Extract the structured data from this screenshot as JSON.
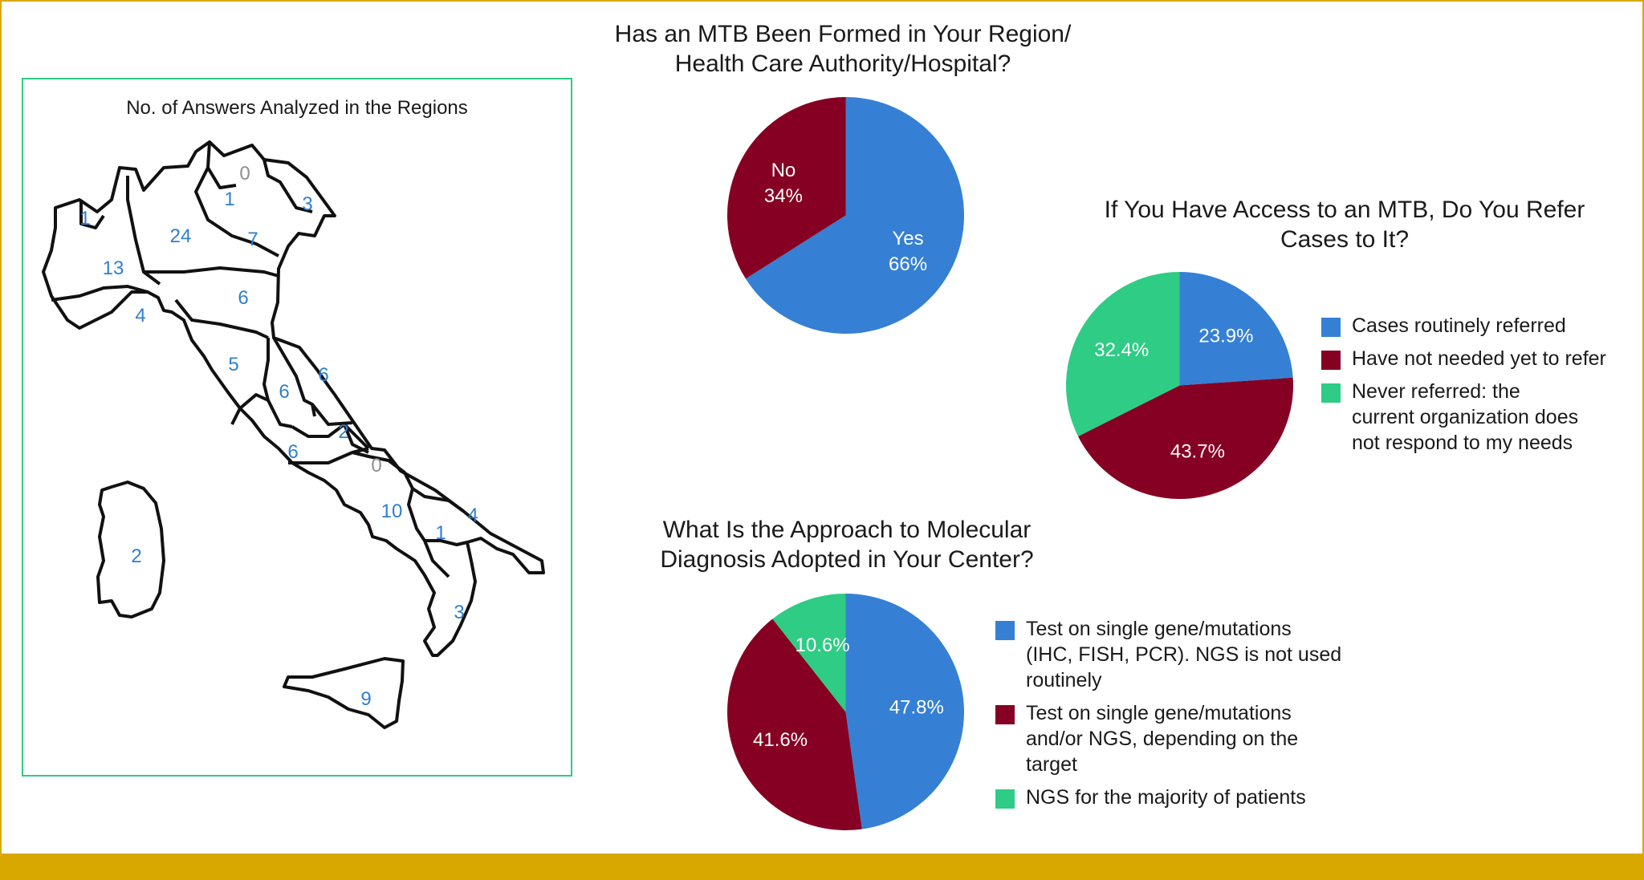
{
  "map": {
    "title": "No. of Answers Analyzed in the Regions",
    "regions": [
      {
        "name": "Valle d'Aosta",
        "value": "1"
      },
      {
        "name": "Piedmont",
        "value": "13"
      },
      {
        "name": "Liguria",
        "value": "4"
      },
      {
        "name": "Lombardy",
        "value": "24"
      },
      {
        "name": "Trentino-Alto Adige (upper)",
        "value": "0"
      },
      {
        "name": "Trentino-Alto Adige (lower)",
        "value": "1"
      },
      {
        "name": "Veneto",
        "value": "7"
      },
      {
        "name": "Friuli Venezia Giulia",
        "value": "3"
      },
      {
        "name": "Emilia-Romagna",
        "value": "6"
      },
      {
        "name": "Tuscany",
        "value": "5"
      },
      {
        "name": "Umbria",
        "value": "6"
      },
      {
        "name": "Marche",
        "value": "6"
      },
      {
        "name": "Lazio",
        "value": "6"
      },
      {
        "name": "Abruzzo",
        "value": "2"
      },
      {
        "name": "Molise",
        "value": "0"
      },
      {
        "name": "Campania",
        "value": "10"
      },
      {
        "name": "Apulia",
        "value": "4"
      },
      {
        "name": "Basilicata",
        "value": "1"
      },
      {
        "name": "Calabria",
        "value": "3"
      },
      {
        "name": "Sicily",
        "value": "9"
      },
      {
        "name": "Sardinia",
        "value": "2"
      }
    ]
  },
  "chart_data": [
    {
      "type": "pie",
      "title": "Has an MTB Been Formed in Your Region/ Health Care Authority/Hospital?",
      "title_lines": [
        "Has an MTB Been Formed in Your Region/",
        "Health Care Authority/Hospital?"
      ],
      "slices": [
        {
          "label": "Yes",
          "value": 66,
          "display": "66%",
          "color": "#3580d4"
        },
        {
          "label": "No",
          "value": 34,
          "display": "34%",
          "color": "#860023"
        }
      ]
    },
    {
      "type": "pie",
      "title": "If You Have Access to an MTB, Do You Refer Cases to It?",
      "title_lines": [
        "If You Have Access to an MTB, Do You Refer",
        "Cases to It?"
      ],
      "slices": [
        {
          "label": "Cases routinely referred",
          "value": 23.9,
          "display": "23.9%",
          "color": "#3580d4"
        },
        {
          "label": "Have not needed yet to refer",
          "value": 43.7,
          "display": "43.7%",
          "color": "#860023"
        },
        {
          "label": "Never referred: the current organization does not respond to my needs",
          "value": 32.4,
          "display": "32.4%",
          "color": "#2ecc84"
        }
      ],
      "legend_lines": [
        [
          "Cases routinely referred"
        ],
        [
          "Have not needed yet to refer"
        ],
        [
          "Never referred: the",
          "current organization does",
          "not respond to my needs"
        ]
      ]
    },
    {
      "type": "pie",
      "title": "What Is the Approach to Molecular Diagnosis Adopted in Your Center?",
      "title_lines": [
        "What Is the Approach to Molecular",
        "Diagnosis Adopted in Your Center?"
      ],
      "slices": [
        {
          "label": "Test on single gene/mutations (IHC, FISH, PCR). NGS is not used routinely",
          "value": 47.8,
          "display": "47.8%",
          "color": "#3580d4"
        },
        {
          "label": "Test on single gene/mutations and/or NGS, depending on the target",
          "value": 41.6,
          "display": "41.6%",
          "color": "#860023"
        },
        {
          "label": "NGS for the majority of patients",
          "value": 10.6,
          "display": "10.6%",
          "color": "#2ecc84"
        }
      ],
      "legend_lines": [
        [
          "Test on single gene/mutations",
          "(IHC, FISH, PCR). NGS is not used",
          "routinely"
        ],
        [
          "Test on single gene/mutations",
          "and/or NGS, depending on the",
          "target"
        ],
        [
          "NGS for the majority of patients"
        ]
      ]
    }
  ]
}
